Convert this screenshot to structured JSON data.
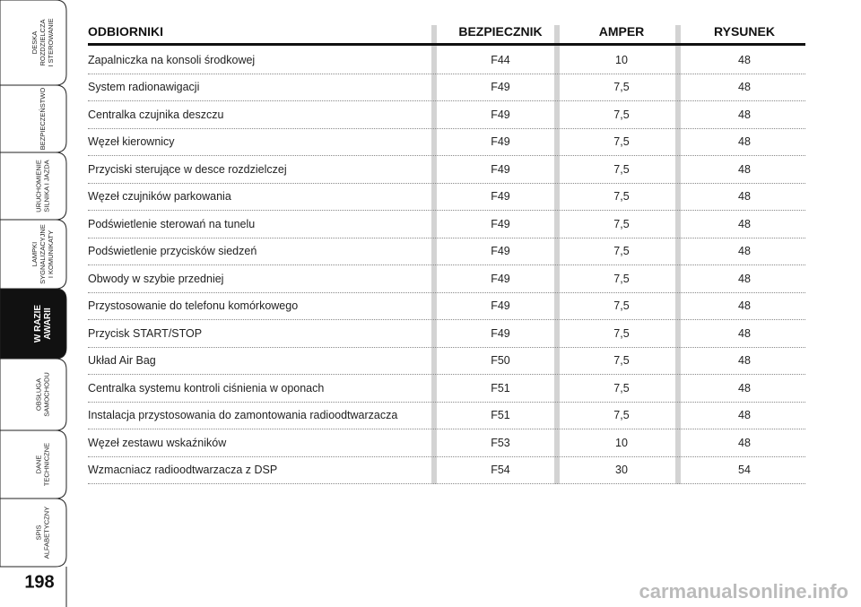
{
  "sidebar": {
    "tabs": [
      {
        "lines": [
          "DESKA",
          "ROZDZIELCZA",
          "I STEROWANIE"
        ]
      },
      {
        "lines": [
          "BEZPIECZEŃSTWO"
        ]
      },
      {
        "lines": [
          "URUCHOMIENIE",
          "SILNIKA I JAZDA"
        ]
      },
      {
        "lines": [
          "LAMPKI",
          "SYGNALIZACYJNE",
          "I KOMUNIKATY"
        ]
      },
      {
        "lines": [
          "W RAZIE",
          "AWARII"
        ],
        "active": true
      },
      {
        "lines": [
          "OBSŁUGA",
          "SAMOCHODU"
        ]
      },
      {
        "lines": [
          "DANE",
          "TECHNICZNE"
        ]
      },
      {
        "lines": [
          "SPIS",
          "ALFABETYCZNY"
        ]
      }
    ],
    "page_number": "198"
  },
  "table": {
    "headers": [
      "ODBIORNIKI",
      "BEZPIECZNIK",
      "AMPER",
      "RYSUNEK"
    ],
    "rows": [
      [
        "Zapalniczka na konsoli środkowej",
        "F44",
        "10",
        "48"
      ],
      [
        "System radionawigacji",
        "F49",
        "7,5",
        "48"
      ],
      [
        "Centralka czujnika deszczu",
        "F49",
        "7,5",
        "48"
      ],
      [
        "Węzeł kierownicy",
        "F49",
        "7,5",
        "48"
      ],
      [
        "Przyciski sterujące w desce rozdzielczej",
        "F49",
        "7,5",
        "48"
      ],
      [
        "Węzeł czujników parkowania",
        "F49",
        "7,5",
        "48"
      ],
      [
        "Podświetlenie sterowań na tunelu",
        "F49",
        "7,5",
        "48"
      ],
      [
        "Podświetlenie przycisków siedzeń",
        "F49",
        "7,5",
        "48"
      ],
      [
        "Obwody w szybie przedniej",
        "F49",
        "7,5",
        "48"
      ],
      [
        "Przystosowanie do telefonu komórkowego",
        "F49",
        "7,5",
        "48"
      ],
      [
        "Przycisk START/STOP",
        "F49",
        "7,5",
        "48"
      ],
      [
        "Układ Air Bag",
        "F50",
        "7,5",
        "48"
      ],
      [
        "Centralka systemu kontroli ciśnienia w oponach",
        "F51",
        "7,5",
        "48"
      ],
      [
        "Instalacja przystosowania do zamontowania radioodtwarzacza",
        "F51",
        "7,5",
        "48"
      ],
      [
        "Węzeł zestawu wskaźników",
        "F53",
        "10",
        "48"
      ],
      [
        "Wzmacniacz radioodtwarzacza z DSP",
        "F54",
        "30",
        "54"
      ]
    ]
  },
  "watermark": "carmanualsonline.info"
}
